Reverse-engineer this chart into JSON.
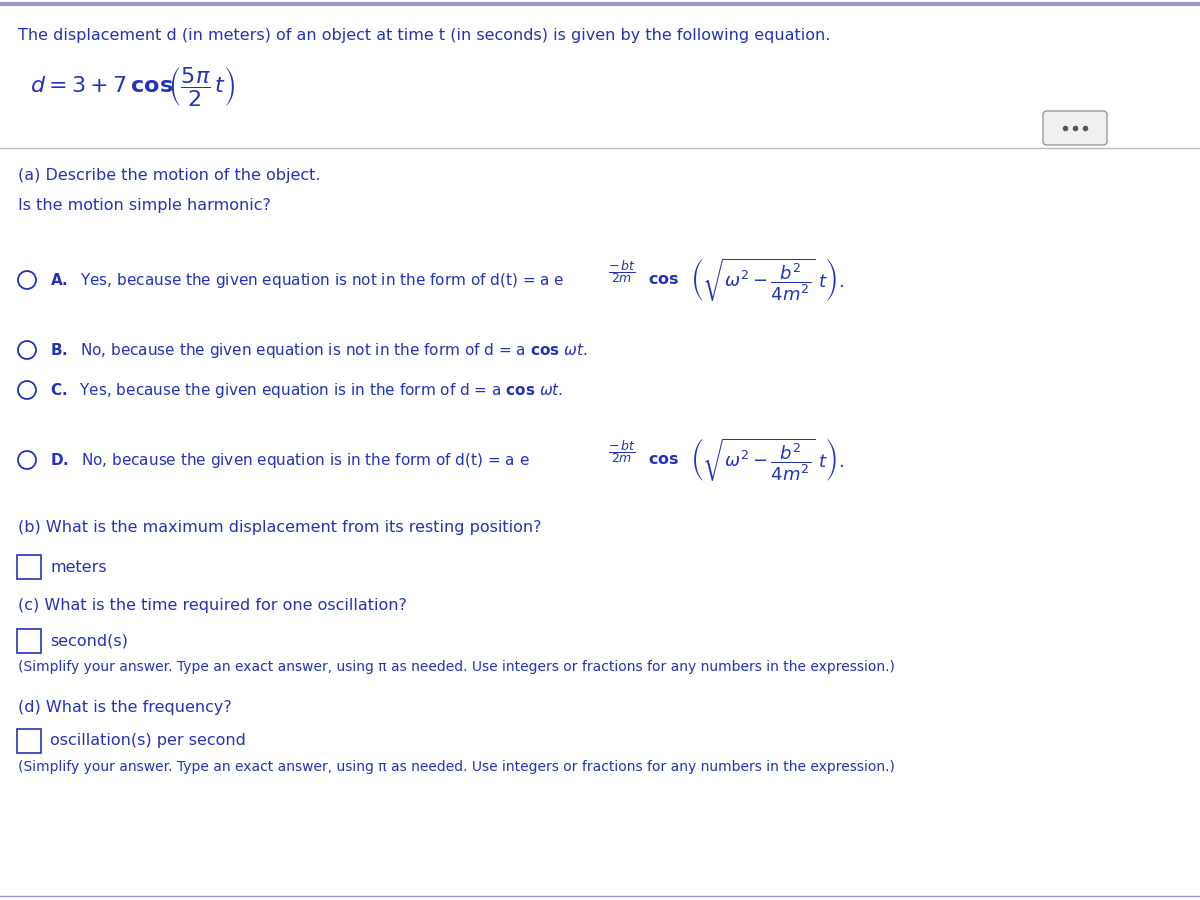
{
  "bg_color": "#ffffff",
  "border_color": "#c0c0c0",
  "text_color": "#2233bb",
  "header_text": "The displacement d (in meters) of an object at time t (in seconds) is given by the following equation.",
  "part_a_label": "(a) Describe the motion of the object.",
  "part_a_sub": "Is the motion simple harmonic?",
  "part_b_label": "(b) What is the maximum displacement from its resting position?",
  "part_b_unit": "meters",
  "part_c_label": "(c) What is the time required for one oscillation?",
  "part_c_unit": "second(s)",
  "part_c_note": "(Simplify your answer. Type an exact answer, using π as needed. Use integers or fractions for any numbers in the expression.)",
  "part_d_label": "(d) What is the frequency?",
  "part_d_unit": "oscillation(s) per second",
  "part_d_note": "(Simplify your answer. Type an exact answer, using π as needed. Use integers or fractions for any numbers in the expression.)"
}
